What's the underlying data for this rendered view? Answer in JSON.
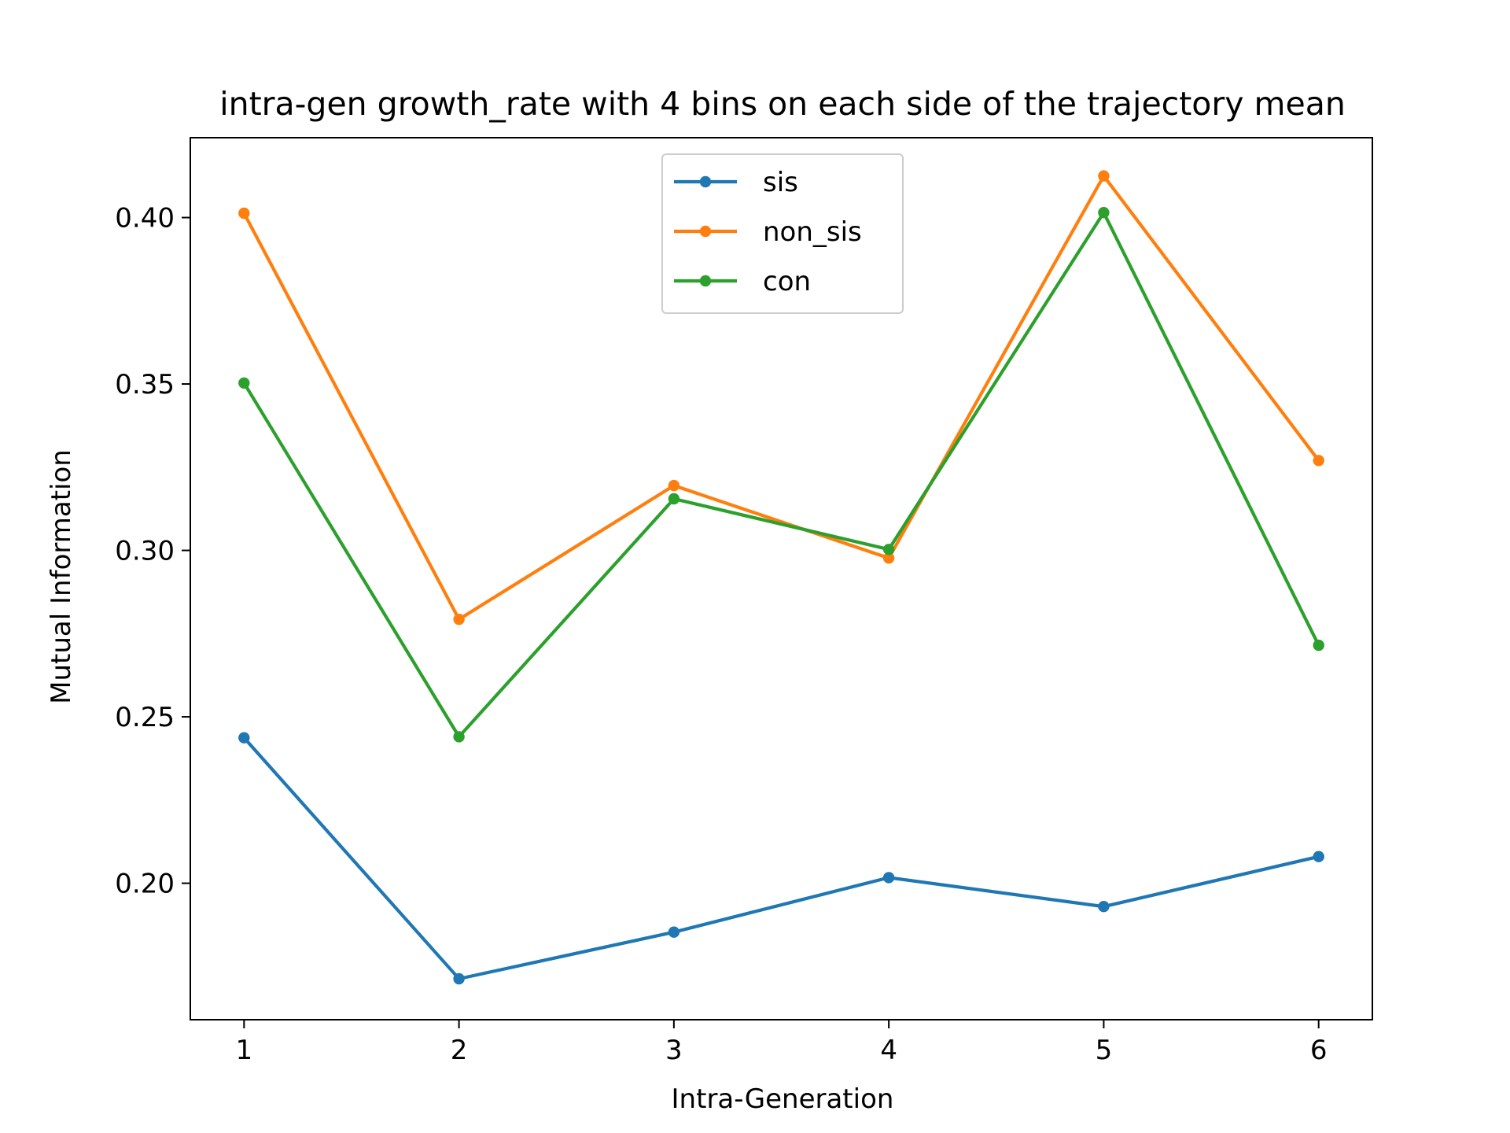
{
  "chart_data": {
    "type": "line",
    "title": "intra-gen growth_rate with 4 bins on each side of the trajectory mean",
    "xlabel": "Intra-Generation",
    "ylabel": "Mutual Information",
    "x": [
      1,
      2,
      3,
      4,
      5,
      6
    ],
    "xticks": [
      1,
      2,
      3,
      4,
      5,
      6
    ],
    "xtick_labels": [
      "1",
      "2",
      "3",
      "4",
      "5",
      "6"
    ],
    "yticks": [
      0.2,
      0.25,
      0.3,
      0.35,
      0.4
    ],
    "ytick_labels": [
      "0.20",
      "0.25",
      "0.30",
      "0.35",
      "0.40"
    ],
    "xlim": [
      0.75,
      6.25
    ],
    "ylim": [
      0.159,
      0.424
    ],
    "grid": false,
    "legend_position": "top-center",
    "series": [
      {
        "name": "sis",
        "color": "#1f77b4",
        "values": [
          0.2437,
          0.1713,
          0.1853,
          0.2017,
          0.193,
          0.208
        ]
      },
      {
        "name": "non_sis",
        "color": "#ff7f0e",
        "values": [
          0.4013,
          0.2793,
          0.3195,
          0.2977,
          0.4125,
          0.327
        ]
      },
      {
        "name": "con",
        "color": "#2ca02c",
        "values": [
          0.3503,
          0.244,
          0.3155,
          0.3003,
          0.4015,
          0.2715
        ]
      }
    ]
  }
}
